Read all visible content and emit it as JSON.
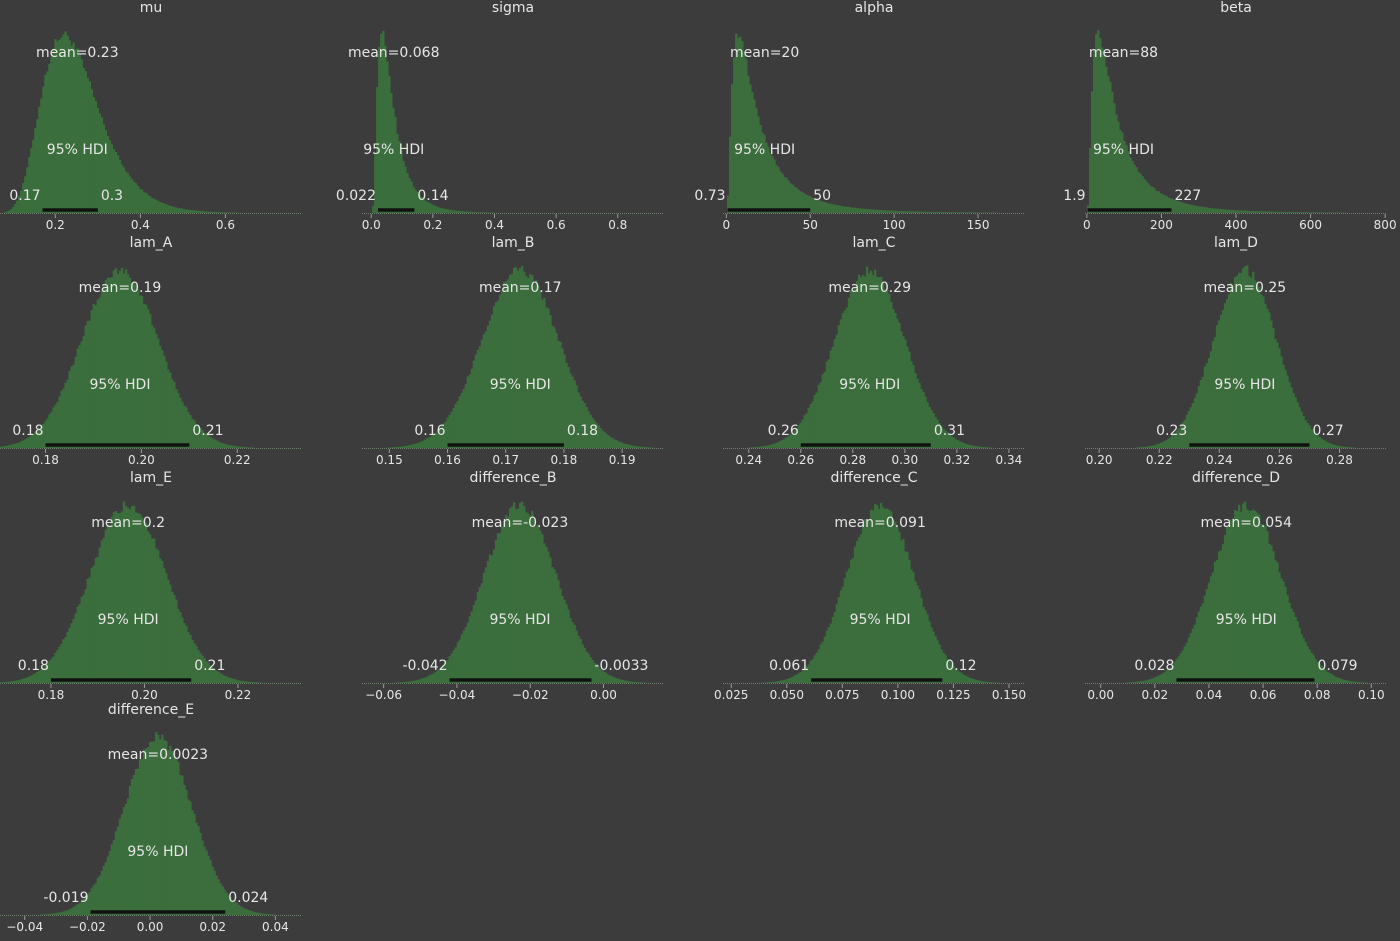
{
  "chart_data": [
    {
      "type": "histogram",
      "title": "mu",
      "mean_label": "mean=0.23",
      "hdi_label": "95% HDI",
      "hdi": [
        0.17,
        0.3
      ],
      "hdi_labels": [
        "0.17",
        "0.3"
      ],
      "xlim": [
        0.07,
        0.78
      ],
      "ticks": [
        0.2,
        0.4,
        0.6
      ],
      "tick_labels": [
        "0.2",
        "0.4",
        "0.6"
      ],
      "density": {
        "kind": "lognormal",
        "mode": 0.22,
        "sigma": 0.3
      }
    },
    {
      "type": "histogram",
      "title": "sigma",
      "mean_label": "mean=0.068",
      "hdi_label": "95% HDI",
      "hdi": [
        0.022,
        0.14
      ],
      "hdi_labels": [
        "0.022",
        "0.14"
      ],
      "xlim": [
        -0.03,
        0.95
      ],
      "ticks": [
        0.0,
        0.2,
        0.4,
        0.6,
        0.8
      ],
      "tick_labels": [
        "0.0",
        "0.2",
        "0.4",
        "0.6",
        "0.8"
      ],
      "density": {
        "kind": "lognormal",
        "mode": 0.035,
        "sigma": 0.7
      }
    },
    {
      "type": "histogram",
      "title": "alpha",
      "mean_label": "mean=20",
      "hdi_label": "95% HDI",
      "hdi": [
        0.73,
        50
      ],
      "hdi_labels": [
        "0.73",
        "50"
      ],
      "xlim": [
        -2,
        178
      ],
      "ticks": [
        0,
        50,
        100,
        150
      ],
      "tick_labels": [
        "0",
        "50",
        "100",
        "150"
      ],
      "density": {
        "kind": "lognormal",
        "mode": 7,
        "sigma": 0.9
      }
    },
    {
      "type": "histogram",
      "title": "beta",
      "mean_label": "mean=88",
      "hdi_label": "95% HDI",
      "hdi": [
        1.9,
        227
      ],
      "hdi_labels": [
        "1.9",
        "227"
      ],
      "xlim": [
        -5,
        805
      ],
      "ticks": [
        0,
        200,
        400,
        600,
        800
      ],
      "tick_labels": [
        "0",
        "200",
        "400",
        "600",
        "800"
      ],
      "density": {
        "kind": "lognormal",
        "mode": 30,
        "sigma": 0.9
      }
    },
    {
      "type": "histogram",
      "title": "lam_A",
      "mean_label": "mean=0.19",
      "hdi_label": "95% HDI",
      "hdi": [
        0.18,
        0.21
      ],
      "hdi_labels": [
        "0.18",
        "0.21"
      ],
      "xlim": [
        0.1705,
        0.2335
      ],
      "ticks": [
        0.18,
        0.2,
        0.22
      ],
      "tick_labels": [
        "0.18",
        "0.20",
        "0.22"
      ],
      "density": {
        "kind": "normal",
        "mean": 0.1955,
        "sd": 0.008
      }
    },
    {
      "type": "histogram",
      "title": "lam_B",
      "mean_label": "mean=0.17",
      "hdi_label": "95% HDI",
      "hdi": [
        0.16,
        0.18
      ],
      "hdi_labels": [
        "0.16",
        "0.18"
      ],
      "xlim": [
        0.1453,
        0.1972
      ],
      "ticks": [
        0.15,
        0.16,
        0.17,
        0.18,
        0.19
      ],
      "tick_labels": [
        "0.15",
        "0.16",
        "0.17",
        "0.18",
        "0.19"
      ],
      "density": {
        "kind": "normal",
        "mean": 0.1725,
        "sd": 0.0066
      }
    },
    {
      "type": "histogram",
      "title": "lam_C",
      "mean_label": "mean=0.29",
      "hdi_label": "95% HDI",
      "hdi": [
        0.26,
        0.31
      ],
      "hdi_labels": [
        "0.26",
        "0.31"
      ],
      "xlim": [
        0.2301,
        0.3462
      ],
      "ticks": [
        0.24,
        0.26,
        0.28,
        0.3,
        0.32,
        0.34
      ],
      "tick_labels": [
        "0.24",
        "0.26",
        "0.28",
        "0.30",
        "0.32",
        "0.34"
      ],
      "density": {
        "kind": "normal",
        "mean": 0.2865,
        "sd": 0.0135
      }
    },
    {
      "type": "histogram",
      "title": "lam_D",
      "mean_label": "mean=0.25",
      "hdi_label": "95% HDI",
      "hdi": [
        0.23,
        0.27
      ],
      "hdi_labels": [
        "0.23",
        "0.27"
      ],
      "xlim": [
        0.1953,
        0.2958
      ],
      "ticks": [
        0.2,
        0.22,
        0.24,
        0.26,
        0.28
      ],
      "tick_labels": [
        "0.20",
        "0.22",
        "0.24",
        "0.26",
        "0.28"
      ],
      "density": {
        "kind": "normal",
        "mean": 0.2485,
        "sd": 0.0105
      }
    },
    {
      "type": "histogram",
      "title": "lam_E",
      "mean_label": "mean=0.2",
      "hdi_label": "95% HDI",
      "hdi": [
        0.18,
        0.21
      ],
      "hdi_labels": [
        "0.18",
        "0.21"
      ],
      "xlim": [
        0.1691,
        0.2337
      ],
      "ticks": [
        0.18,
        0.2,
        0.22
      ],
      "tick_labels": [
        "0.18",
        "0.20",
        "0.22"
      ],
      "density": {
        "kind": "normal",
        "mean": 0.1965,
        "sd": 0.0082
      }
    },
    {
      "type": "histogram",
      "title": "difference_B",
      "mean_label": "mean=-0.023",
      "hdi_label": "95% HDI",
      "hdi": [
        -0.042,
        -0.0033
      ],
      "hdi_labels": [
        "-0.042",
        "-0.0033"
      ],
      "xlim": [
        -0.0659,
        0.0165
      ],
      "ticks": [
        -0.06,
        -0.04,
        -0.02,
        0.0
      ],
      "tick_labels": [
        "−0.06",
        "−0.04",
        "−0.02",
        "0.00"
      ],
      "density": {
        "kind": "normal",
        "mean": -0.0228,
        "sd": 0.0098
      }
    },
    {
      "type": "histogram",
      "title": "difference_C",
      "mean_label": "mean=0.091",
      "hdi_label": "95% HDI",
      "hdi": [
        0.061,
        0.12
      ],
      "hdi_labels": [
        "0.061",
        "0.12"
      ],
      "xlim": [
        0.0213,
        0.1572
      ],
      "ticks": [
        0.025,
        0.05,
        0.075,
        0.1,
        0.125,
        0.15
      ],
      "tick_labels": [
        "0.025",
        "0.050",
        "0.075",
        "0.100",
        "0.125",
        "0.150"
      ],
      "density": {
        "kind": "normal",
        "mean": 0.092,
        "sd": 0.0152
      }
    },
    {
      "type": "histogram",
      "title": "difference_D",
      "mean_label": "mean=0.054",
      "hdi_label": "95% HDI",
      "hdi": [
        0.028,
        0.079
      ],
      "hdi_labels": [
        "0.028",
        "0.079"
      ],
      "xlim": [
        -0.0058,
        0.1058
      ],
      "ticks": [
        0.0,
        0.02,
        0.04,
        0.06,
        0.08,
        0.1
      ],
      "tick_labels": [
        "0.00",
        "0.02",
        "0.04",
        "0.06",
        "0.08",
        "0.10"
      ],
      "density": {
        "kind": "normal",
        "mean": 0.0538,
        "sd": 0.0128
      }
    },
    {
      "type": "histogram",
      "title": "difference_E",
      "mean_label": "mean=0.0023",
      "hdi_label": "95% HDI",
      "hdi": [
        -0.019,
        0.024
      ],
      "hdi_labels": [
        "-0.019",
        "0.024"
      ],
      "xlim": [
        -0.0479,
        0.0485
      ],
      "ticks": [
        -0.04,
        -0.02,
        0.0,
        0.02,
        0.04
      ],
      "tick_labels": [
        "−0.04",
        "−0.02",
        "0.00",
        "0.02",
        "0.04"
      ],
      "density": {
        "kind": "normal",
        "mean": 0.0025,
        "sd": 0.0108
      }
    }
  ],
  "colors": {
    "background": "#3c3c3c",
    "histogram": "#3b6e3c",
    "hdi_bar": "#111111",
    "text": "#e6e6e6",
    "axis": "#9a9a9a"
  }
}
